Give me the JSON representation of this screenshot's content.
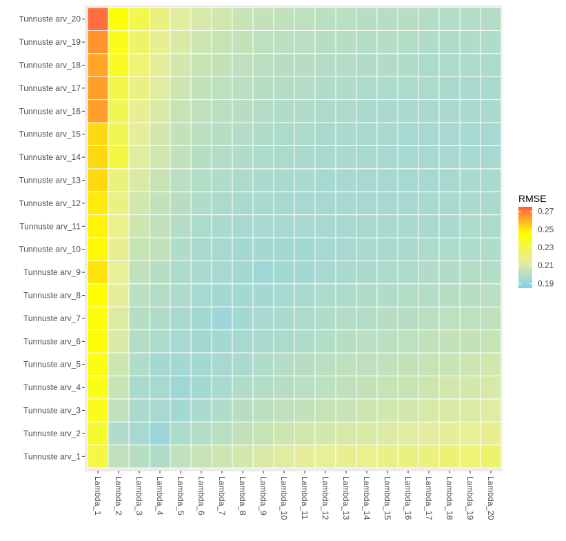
{
  "chart_data": {
    "type": "heatmap",
    "x_categories": [
      "Lambda_1",
      "Lambda_2",
      "Lambda_3",
      "Lambda_4",
      "Lambda_5",
      "Lambda_6",
      "Lambda_7",
      "Lambda_8",
      "Lambda_9",
      "Lambda_10",
      "Lambda_11",
      "Lambda_12",
      "Lambda_13",
      "Lambda_14",
      "Lambda_15",
      "Lambda_16",
      "Lambda_17",
      "Lambda_18",
      "Lambda_19",
      "Lambda_20"
    ],
    "y_categories": [
      "Tunnuste arv_1",
      "Tunnuste arv_2",
      "Tunnuste arv_3",
      "Tunnuste arv_4",
      "Tunnuste arv_5",
      "Tunnuste arv_6",
      "Tunnuste arv_7",
      "Tunnuste arv_8",
      "Tunnuste arv_9",
      "Tunnuste arv_10",
      "Tunnuste arv_11",
      "Tunnuste arv_12",
      "Tunnuste arv_13",
      "Tunnuste arv_14",
      "Tunnuste arv_15",
      "Tunnuste arv_16",
      "Tunnuste arv_17",
      "Tunnuste arv_18",
      "Tunnuste arv_19",
      "Tunnuste arv_20"
    ],
    "values": [
      [
        0.232,
        0.203,
        0.2,
        0.198,
        0.203,
        0.205,
        0.207,
        0.209,
        0.211,
        0.213,
        0.215,
        0.216,
        0.217,
        0.218,
        0.219,
        0.22,
        0.221,
        0.222,
        0.223,
        0.224
      ],
      [
        0.236,
        0.198,
        0.195,
        0.192,
        0.197,
        0.199,
        0.201,
        0.203,
        0.205,
        0.207,
        0.208,
        0.209,
        0.21,
        0.211,
        0.212,
        0.213,
        0.214,
        0.215,
        0.216,
        0.217
      ],
      [
        0.24,
        0.203,
        0.196,
        0.195,
        0.194,
        0.196,
        0.198,
        0.2,
        0.201,
        0.203,
        0.204,
        0.205,
        0.206,
        0.207,
        0.208,
        0.209,
        0.21,
        0.211,
        0.212,
        0.213
      ],
      [
        0.241,
        0.206,
        0.196,
        0.195,
        0.193,
        0.194,
        0.196,
        0.198,
        0.199,
        0.2,
        0.201,
        0.202,
        0.203,
        0.204,
        0.205,
        0.206,
        0.207,
        0.208,
        0.209,
        0.21
      ],
      [
        0.242,
        0.207,
        0.198,
        0.194,
        0.194,
        0.194,
        0.195,
        0.196,
        0.198,
        0.199,
        0.2,
        0.201,
        0.202,
        0.202,
        0.203,
        0.204,
        0.205,
        0.206,
        0.207,
        0.208
      ],
      [
        0.244,
        0.211,
        0.199,
        0.197,
        0.195,
        0.194,
        0.194,
        0.195,
        0.196,
        0.197,
        0.198,
        0.199,
        0.2,
        0.201,
        0.201,
        0.202,
        0.203,
        0.204,
        0.204,
        0.205
      ],
      [
        0.244,
        0.212,
        0.2,
        0.198,
        0.196,
        0.194,
        0.192,
        0.194,
        0.195,
        0.196,
        0.197,
        0.198,
        0.199,
        0.199,
        0.2,
        0.2,
        0.201,
        0.202,
        0.202,
        0.203
      ],
      [
        0.245,
        0.215,
        0.201,
        0.199,
        0.197,
        0.195,
        0.194,
        0.194,
        0.194,
        0.195,
        0.196,
        0.197,
        0.197,
        0.198,
        0.198,
        0.199,
        0.199,
        0.2,
        0.2,
        0.201
      ],
      [
        0.25,
        0.216,
        0.203,
        0.2,
        0.197,
        0.196,
        0.195,
        0.194,
        0.193,
        0.194,
        0.194,
        0.195,
        0.196,
        0.196,
        0.197,
        0.197,
        0.198,
        0.198,
        0.199,
        0.199
      ],
      [
        0.246,
        0.217,
        0.205,
        0.203,
        0.198,
        0.196,
        0.195,
        0.194,
        0.194,
        0.194,
        0.194,
        0.195,
        0.195,
        0.196,
        0.196,
        0.196,
        0.197,
        0.197,
        0.197,
        0.198
      ],
      [
        0.247,
        0.218,
        0.207,
        0.203,
        0.199,
        0.197,
        0.196,
        0.195,
        0.195,
        0.195,
        0.195,
        0.195,
        0.195,
        0.195,
        0.196,
        0.196,
        0.196,
        0.196,
        0.197,
        0.197
      ],
      [
        0.249,
        0.22,
        0.208,
        0.204,
        0.2,
        0.198,
        0.197,
        0.196,
        0.196,
        0.195,
        0.195,
        0.195,
        0.195,
        0.195,
        0.195,
        0.195,
        0.196,
        0.196,
        0.196,
        0.196
      ],
      [
        0.252,
        0.221,
        0.211,
        0.206,
        0.201,
        0.199,
        0.198,
        0.197,
        0.196,
        0.196,
        0.196,
        0.195,
        0.195,
        0.195,
        0.195,
        0.195,
        0.195,
        0.195,
        0.196,
        0.196
      ],
      [
        0.252,
        0.232,
        0.213,
        0.208,
        0.203,
        0.2,
        0.199,
        0.198,
        0.197,
        0.197,
        0.196,
        0.196,
        0.196,
        0.195,
        0.195,
        0.195,
        0.195,
        0.195,
        0.195,
        0.195
      ],
      [
        0.252,
        0.229,
        0.215,
        0.209,
        0.204,
        0.201,
        0.2,
        0.199,
        0.198,
        0.197,
        0.197,
        0.196,
        0.196,
        0.196,
        0.196,
        0.195,
        0.195,
        0.195,
        0.195,
        0.195
      ],
      [
        0.263,
        0.229,
        0.217,
        0.211,
        0.205,
        0.203,
        0.201,
        0.2,
        0.199,
        0.198,
        0.198,
        0.197,
        0.197,
        0.196,
        0.196,
        0.196,
        0.196,
        0.196,
        0.196,
        0.196
      ],
      [
        0.263,
        0.231,
        0.22,
        0.213,
        0.207,
        0.204,
        0.202,
        0.201,
        0.2,
        0.199,
        0.199,
        0.198,
        0.198,
        0.197,
        0.197,
        0.197,
        0.197,
        0.196,
        0.196,
        0.196
      ],
      [
        0.262,
        0.238,
        0.223,
        0.215,
        0.209,
        0.206,
        0.204,
        0.202,
        0.201,
        0.2,
        0.2,
        0.199,
        0.199,
        0.198,
        0.198,
        0.198,
        0.197,
        0.197,
        0.197,
        0.197
      ],
      [
        0.265,
        0.24,
        0.225,
        0.217,
        0.211,
        0.207,
        0.205,
        0.204,
        0.202,
        0.201,
        0.201,
        0.2,
        0.2,
        0.199,
        0.199,
        0.199,
        0.198,
        0.198,
        0.198,
        0.198
      ],
      [
        0.272,
        0.244,
        0.231,
        0.221,
        0.214,
        0.21,
        0.208,
        0.206,
        0.204,
        0.203,
        0.202,
        0.201,
        0.201,
        0.2,
        0.2,
        0.2,
        0.199,
        0.199,
        0.199,
        0.199
      ]
    ],
    "xlabel": "",
    "ylabel": "",
    "legend": {
      "title": "RMSE",
      "position": "right",
      "ticks": [
        0.27,
        0.25,
        0.23,
        0.21,
        0.19
      ],
      "tick_labels": [
        "0.27",
        "0.25",
        "0.23",
        "0.21",
        "0.19"
      ],
      "range": [
        0.185,
        0.275
      ],
      "colors": [
        "#87CEEB",
        "#E6EE9C",
        "#FFFF00",
        "#FF5E45"
      ]
    },
    "grid": true
  }
}
